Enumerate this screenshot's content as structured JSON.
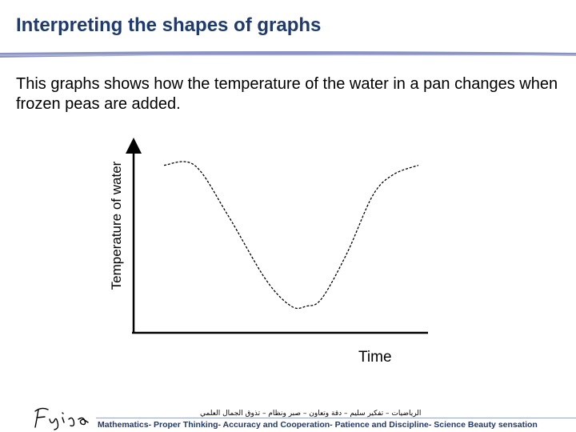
{
  "header": {
    "title": "Interpreting the shapes of graphs",
    "description": "This graphs shows how the temperature of the water in a pan changes when frozen peas are added."
  },
  "chart_data": {
    "type": "line",
    "title": "",
    "xlabel": "Time",
    "ylabel": "Temperature of water",
    "grid": false,
    "legend": "none",
    "axis_ticks": "none",
    "xlim": [
      0,
      100
    ],
    "ylim": [
      0,
      100
    ],
    "series": [
      {
        "line_style": "dashed",
        "color": "#000000",
        "x": [
          0,
          12,
          25,
          40,
          50,
          56,
          62,
          72,
          82,
          90,
          100
        ],
        "y": [
          88,
          88,
          62,
          28,
          14,
          14,
          18,
          42,
          72,
          83,
          88
        ]
      }
    ]
  },
  "footer": {
    "arabic_text": "الرياضيات – تفكير سليم – دقة وتعاون – صبر ونظام – تذوق الجمال العلمي",
    "english_text": "Mathematics- Proper Thinking- Accuracy and Cooperation- Patience and Discipline- Science Beauty sensation"
  },
  "colors": {
    "title": "#1f3a6e",
    "title_rule": "#8a93c2",
    "axis": "#000000"
  }
}
